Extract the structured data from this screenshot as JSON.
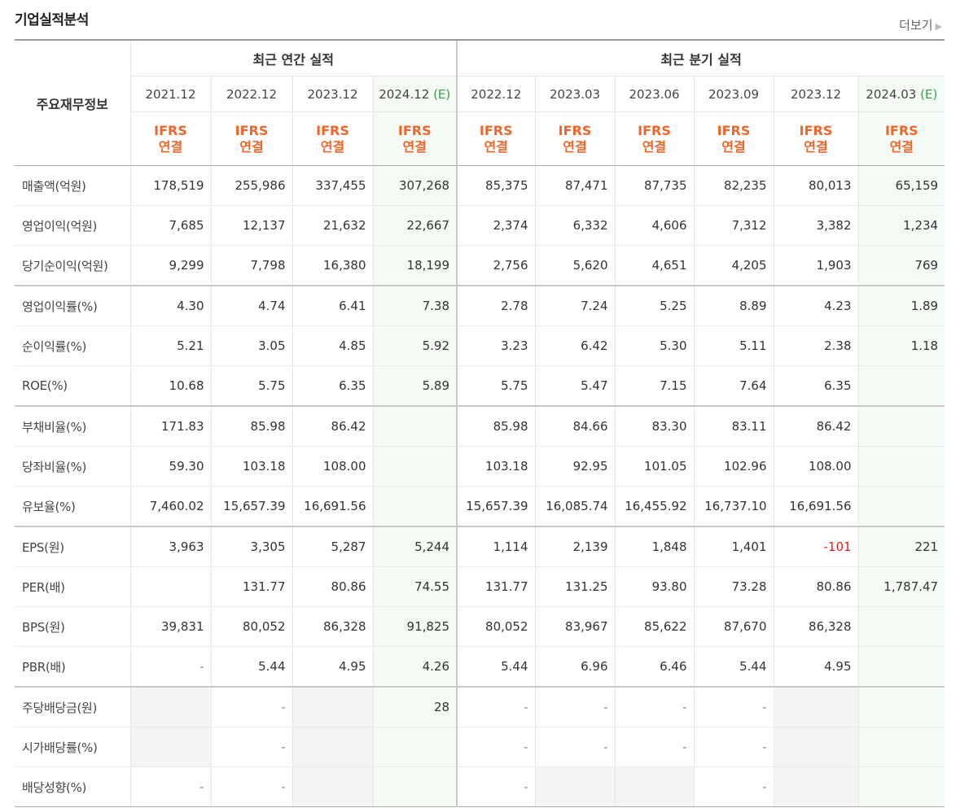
{
  "title": "기업실적분석",
  "more_label": "더보기",
  "header": {
    "label_col": "주요재무정보",
    "groups": [
      "최근 연간 실적",
      "최근 분기 실적"
    ],
    "periods": [
      {
        "date": "2021.12",
        "est": ""
      },
      {
        "date": "2022.12",
        "est": ""
      },
      {
        "date": "2023.12",
        "est": ""
      },
      {
        "date": "2024.12",
        "est": "(E)"
      },
      {
        "date": "2022.12",
        "est": ""
      },
      {
        "date": "2023.03",
        "est": ""
      },
      {
        "date": "2023.06",
        "est": ""
      },
      {
        "date": "2023.09",
        "est": ""
      },
      {
        "date": "2023.12",
        "est": ""
      },
      {
        "date": "2024.03",
        "est": "(E)"
      }
    ],
    "ifrs_line1": "IFRS",
    "ifrs_line2": "연결"
  },
  "rows": [
    {
      "label": "매출액(억원)",
      "values": [
        "178,519",
        "255,986",
        "337,455",
        "307,268",
        "85,375",
        "87,471",
        "87,735",
        "82,235",
        "80,013",
        "65,159"
      ]
    },
    {
      "label": "영업이익(억원)",
      "values": [
        "7,685",
        "12,137",
        "21,632",
        "22,667",
        "2,374",
        "6,332",
        "4,606",
        "7,312",
        "3,382",
        "1,234"
      ]
    },
    {
      "label": "당기순이익(억원)",
      "values": [
        "9,299",
        "7,798",
        "16,380",
        "18,199",
        "2,756",
        "5,620",
        "4,651",
        "4,205",
        "1,903",
        "769"
      ]
    },
    {
      "label": "영업이익률(%)",
      "values": [
        "4.30",
        "4.74",
        "6.41",
        "7.38",
        "2.78",
        "7.24",
        "5.25",
        "8.89",
        "4.23",
        "1.89"
      ]
    },
    {
      "label": "순이익률(%)",
      "values": [
        "5.21",
        "3.05",
        "4.85",
        "5.92",
        "3.23",
        "6.42",
        "5.30",
        "5.11",
        "2.38",
        "1.18"
      ]
    },
    {
      "label": "ROE(%)",
      "values": [
        "10.68",
        "5.75",
        "6.35",
        "5.89",
        "5.75",
        "5.47",
        "7.15",
        "7.64",
        "6.35",
        ""
      ]
    },
    {
      "label": "부채비율(%)",
      "values": [
        "171.83",
        "85.98",
        "86.42",
        "",
        "85.98",
        "84.66",
        "83.30",
        "83.11",
        "86.42",
        ""
      ]
    },
    {
      "label": "당좌비율(%)",
      "values": [
        "59.30",
        "103.18",
        "108.00",
        "",
        "103.18",
        "92.95",
        "101.05",
        "102.96",
        "108.00",
        ""
      ]
    },
    {
      "label": "유보율(%)",
      "values": [
        "7,460.02",
        "15,657.39",
        "16,691.56",
        "",
        "15,657.39",
        "16,085.74",
        "16,455.92",
        "16,737.10",
        "16,691.56",
        ""
      ]
    },
    {
      "label": "EPS(원)",
      "values": [
        "3,963",
        "3,305",
        "5,287",
        "5,244",
        "1,114",
        "2,139",
        "1,848",
        "1,401",
        "-101",
        "221"
      ]
    },
    {
      "label": "PER(배)",
      "values": [
        "",
        "131.77",
        "80.86",
        "74.55",
        "131.77",
        "131.25",
        "93.80",
        "73.28",
        "80.86",
        "1,787.47"
      ]
    },
    {
      "label": "BPS(원)",
      "values": [
        "39,831",
        "80,052",
        "86,328",
        "91,825",
        "80,052",
        "83,967",
        "85,622",
        "87,670",
        "86,328",
        ""
      ]
    },
    {
      "label": "PBR(배)",
      "values": [
        "-",
        "5.44",
        "4.95",
        "4.26",
        "5.44",
        "6.96",
        "6.46",
        "5.44",
        "4.95",
        ""
      ]
    },
    {
      "label": "주당배당금(원)",
      "values": [
        "",
        "-",
        "",
        "28",
        "-",
        "-",
        "-",
        "-",
        "",
        ""
      ]
    },
    {
      "label": "시가배당률(%)",
      "values": [
        "",
        "-",
        "",
        "",
        "-",
        "-",
        "-",
        "-",
        "",
        ""
      ]
    },
    {
      "label": "배당성향(%)",
      "values": [
        "-",
        "-",
        "",
        "",
        "-",
        "",
        "",
        "-",
        "",
        ""
      ]
    }
  ]
}
